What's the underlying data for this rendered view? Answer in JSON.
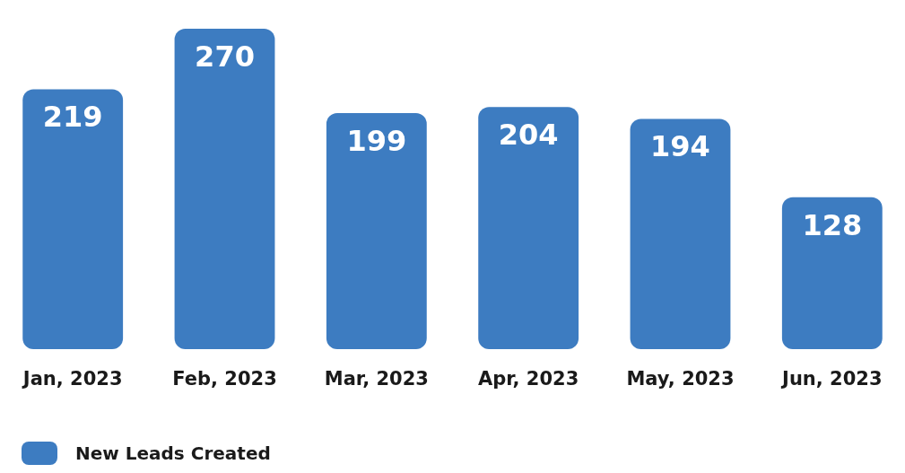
{
  "chart_data": {
    "type": "bar",
    "categories": [
      "Jan, 2023",
      "Feb, 2023",
      "Mar, 2023",
      "Apr, 2023",
      "May, 2023",
      "Jun, 2023"
    ],
    "series": [
      {
        "name": "New Leads Created",
        "color": "#3d7cc1",
        "values": [
          219,
          270,
          199,
          204,
          194,
          128
        ]
      }
    ],
    "data_labels": true,
    "legend": "bottom left",
    "grid": false
  }
}
